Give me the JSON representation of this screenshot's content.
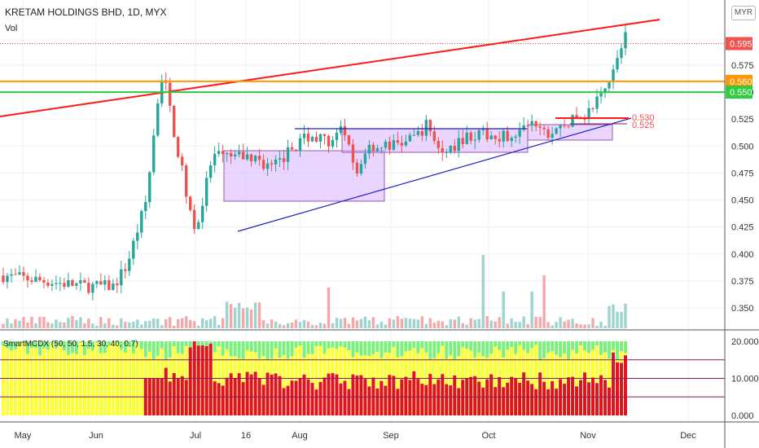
{
  "header": {
    "title": "KRETAM HOLDINGS BHD, 1D, MYX",
    "volume_label": "Vol",
    "currency": "MYR"
  },
  "indicator": {
    "label": "SmartMCDX (50, 50, 1.5, 30, 40, 0.7)",
    "y_ticks": [
      "20.000",
      "10.000",
      "0.000"
    ],
    "levels": [
      5,
      10,
      15
    ]
  },
  "colors": {
    "up": "#26a69a",
    "down": "#ef5350",
    "trendline": "#ff1a1a",
    "resistance": "#ff9800",
    "support": "#2ecc40",
    "triangle": "#2020c0",
    "box_fill": "#d9b3ff",
    "box_stroke": "#9b59b6",
    "mcdx_red": "#e0141e",
    "mcdx_yellow": "#ffff33",
    "mcdx_green": "#7cf07c"
  },
  "chart_data": {
    "type": "candlestick",
    "ylim": [
      0.325,
      0.625
    ],
    "y_ticks": [
      "0.350",
      "0.375",
      "0.400",
      "0.425",
      "0.450",
      "0.475",
      "0.500",
      "0.525",
      "0.550",
      "0.575"
    ],
    "x_labels": [
      "May",
      "Jun",
      "Jul",
      "16",
      "Aug",
      "Sep",
      "Oct",
      "Nov",
      "Dec"
    ],
    "price_labels": [
      {
        "value": "0.595",
        "color": "#ef5350"
      },
      {
        "value": "0.560",
        "color": "#ff9800"
      },
      {
        "value": "0.550",
        "color": "#2ecc40"
      }
    ],
    "annotations": [
      {
        "text": "0.530",
        "color": "#ef5350"
      },
      {
        "text": "0.525",
        "color": "#ef5350"
      }
    ],
    "levels": {
      "resistance": 0.56,
      "support": 0.55,
      "last": 0.595
    }
  }
}
